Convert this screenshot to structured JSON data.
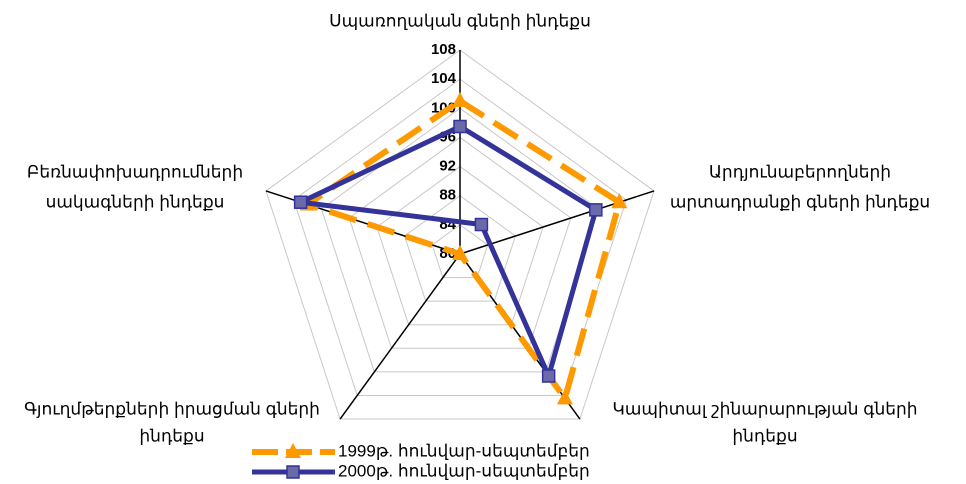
{
  "chart_data": {
    "type": "radar",
    "categories": [
      [
        "Սպառողական գների ինդեքս"
      ],
      [
        "Արդյունաբերողների",
        "արտադրանքի գների ինդեքս"
      ],
      [
        "Կապիտալ շինարարության գների",
        "ինդեքս"
      ],
      [
        "Գյուղմթերքների իրացման գների",
        "ինդեքս"
      ],
      [
        "Բեռնափոխադրումների",
        "սակագների ինդեքս"
      ]
    ],
    "series": [
      {
        "name": "1999թ. հունվար-սեպտեմբեր",
        "color": "#ff9900",
        "values": [
          101,
          103,
          104.5,
          80,
          102
        ]
      },
      {
        "name": "2000թ. հունվար-սեպտեմբեր",
        "color": "#333399",
        "values": [
          97.5,
          99.6,
          100.7,
          75,
          103
        ]
      }
    ],
    "ylim": [
      80,
      108
    ],
    "yticks": [
      80,
      84,
      88,
      92,
      96,
      100,
      104,
      108
    ],
    "grid": true
  }
}
